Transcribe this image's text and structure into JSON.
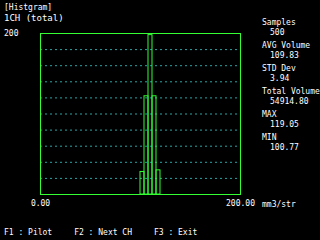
{
  "chart_data": {
    "type": "histogram",
    "title": "[Histgram]",
    "subtitle": "1CH (total)",
    "bins": [
      100,
      104,
      108,
      112,
      116,
      120
    ],
    "counts": [
      28,
      122,
      198,
      122,
      30
    ],
    "color": "#33ff33",
    "xlim": [
      0,
      200
    ],
    "xticks": [
      {
        "value": 0,
        "label": "0.00"
      },
      {
        "value": 200,
        "label": "200.00"
      }
    ],
    "x_label": "mm3/str",
    "ylim": [
      0,
      200
    ],
    "yticks": [
      0,
      200
    ],
    "grid": true,
    "stats": [
      {
        "label": "Samples",
        "value": "500"
      },
      {
        "label": "AVG Volume",
        "value": "109.83"
      },
      {
        "label": "STD Dev",
        "value": "3.94"
      },
      {
        "label": "Total Volume",
        "value": "54914.80"
      },
      {
        "label": "MAX",
        "value": "119.05"
      },
      {
        "label": "MIN",
        "value": "100.77"
      }
    ],
    "function_keys": [
      "F1 : Pilot",
      "F2 : Next CH",
      "F3 : Exit"
    ]
  }
}
